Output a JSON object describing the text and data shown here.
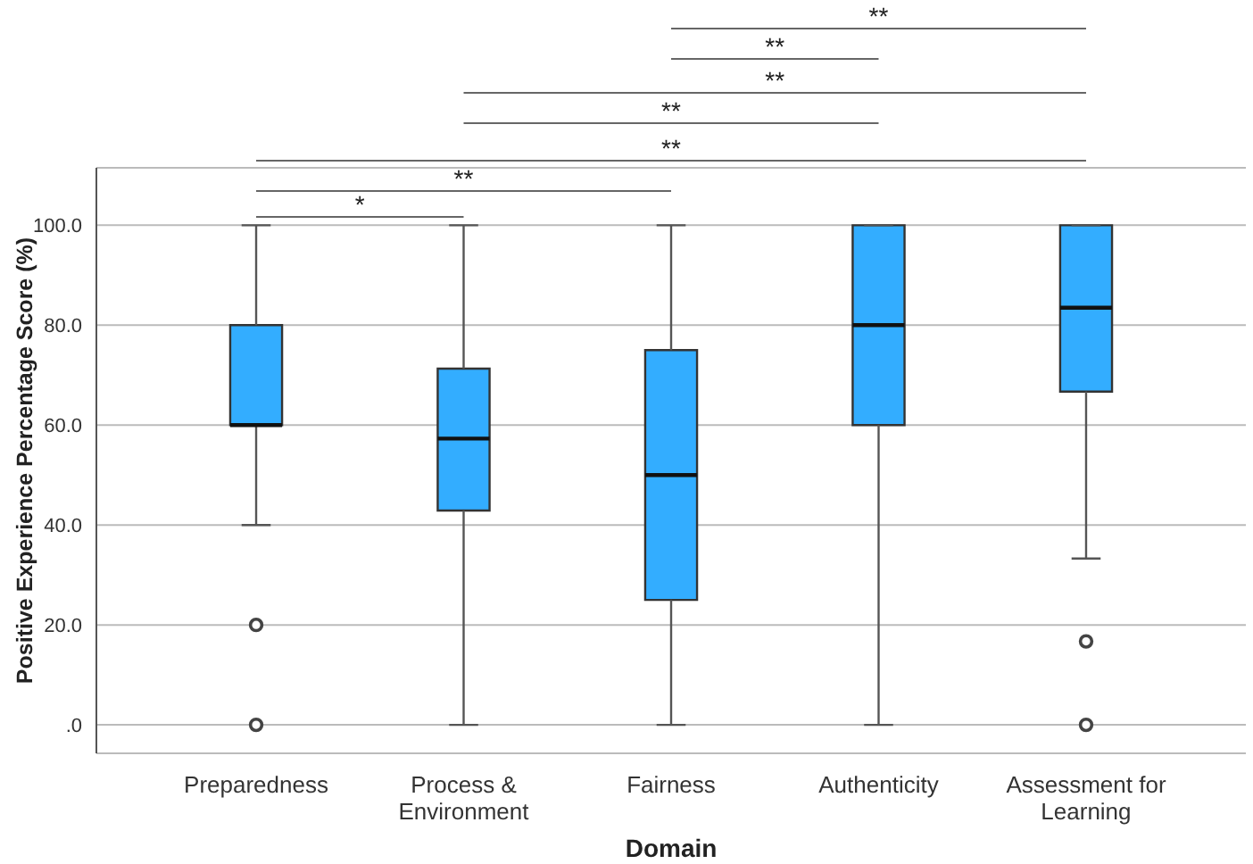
{
  "chart_data": {
    "type": "box",
    "xlabel": "Domain",
    "ylabel": "Positive Experience Percentage Score (%)",
    "categories": [
      "Preparedness",
      "Process & Environment",
      "Fairness",
      "Authenticity",
      "Assessment for Learning"
    ],
    "color": "#33adff",
    "boxes": [
      {
        "low": 40,
        "q1": 60,
        "median": 60,
        "q3": 80,
        "high": 100,
        "outliers": [
          20,
          0
        ]
      },
      {
        "low": 0,
        "q1": 42.9,
        "median": 57.3,
        "q3": 71.3,
        "high": 100
      },
      {
        "low": 0,
        "q1": 25,
        "median": 50,
        "q3": 75,
        "high": 100
      },
      {
        "low": 0,
        "q1": 60,
        "median": 80,
        "q3": 100,
        "high": 100
      },
      {
        "low": 33.3,
        "q1": 66.7,
        "median": 83.5,
        "q3": 100,
        "high": 100,
        "outliers": [
          16.7,
          0
        ]
      }
    ],
    "ylim": [
      -5.7,
      111.5
    ],
    "yticks": [
      {
        "value": 0,
        "label": ".0"
      },
      {
        "value": 20,
        "label": "20.0"
      },
      {
        "value": 40,
        "label": "40.0"
      },
      {
        "value": 60,
        "label": "60.0"
      },
      {
        "value": 80,
        "label": "80.0"
      },
      {
        "value": 100,
        "label": "100.0"
      }
    ],
    "grid": "y",
    "annotations": [
      "**",
      "**",
      "**",
      "**",
      "**",
      "**",
      "*"
    ]
  }
}
